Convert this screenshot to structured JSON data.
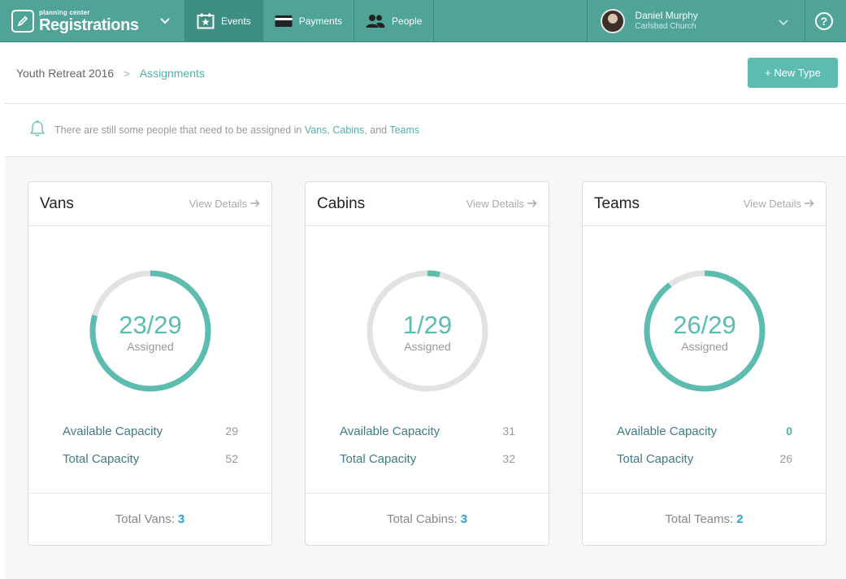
{
  "nav": {
    "brand_small": "planning center",
    "brand_big": "Registrations",
    "tabs": [
      {
        "label": "Events",
        "icon": "calendar-star-icon"
      },
      {
        "label": "Payments",
        "icon": "credit-card-icon"
      },
      {
        "label": "People",
        "icon": "people-icon"
      }
    ],
    "user": {
      "name": "Daniel Murphy",
      "org": "Carlsbad Church"
    },
    "help_label": "?"
  },
  "breadcrumb": {
    "parent": "Youth Retreat 2016",
    "separator": ">",
    "current": "Assignments"
  },
  "new_type_label": "+ New Type",
  "alert": {
    "icon": "bell-icon",
    "text_prefix": "There are still some people that need to be assigned in ",
    "link1": "Vans",
    "sep1": ", ",
    "link2": "Cabins",
    "sep2": ", and ",
    "link3": "Teams"
  },
  "cards": [
    {
      "title": "Vans",
      "view_details": "View Details",
      "assigned_value": "23/29",
      "assigned_label": "Assigned",
      "progress": 0.793,
      "available_label": "Available Capacity",
      "available_value": "29",
      "total_label": "Total Capacity",
      "total_value": "52",
      "foot_label": "Total Vans:",
      "foot_value": "3"
    },
    {
      "title": "Cabins",
      "view_details": "View Details",
      "assigned_value": "1/29",
      "assigned_label": "Assigned",
      "progress": 0.034,
      "available_label": "Available Capacity",
      "available_value": "31",
      "total_label": "Total Capacity",
      "total_value": "32",
      "foot_label": "Total Cabins:",
      "foot_value": "3"
    },
    {
      "title": "Teams",
      "view_details": "View Details",
      "assigned_value": "26/29",
      "assigned_label": "Assigned",
      "progress": 0.897,
      "available_label": "Available Capacity",
      "available_value": "0",
      "total_label": "Total Capacity",
      "total_value": "26",
      "foot_label": "Total Teams:",
      "foot_value": "2"
    }
  ],
  "colors": {
    "accent": "#5cbcaf",
    "nav": "#4fa397",
    "ring_track": "#e2e2e2",
    "link_blue": "#2ea3d0"
  }
}
